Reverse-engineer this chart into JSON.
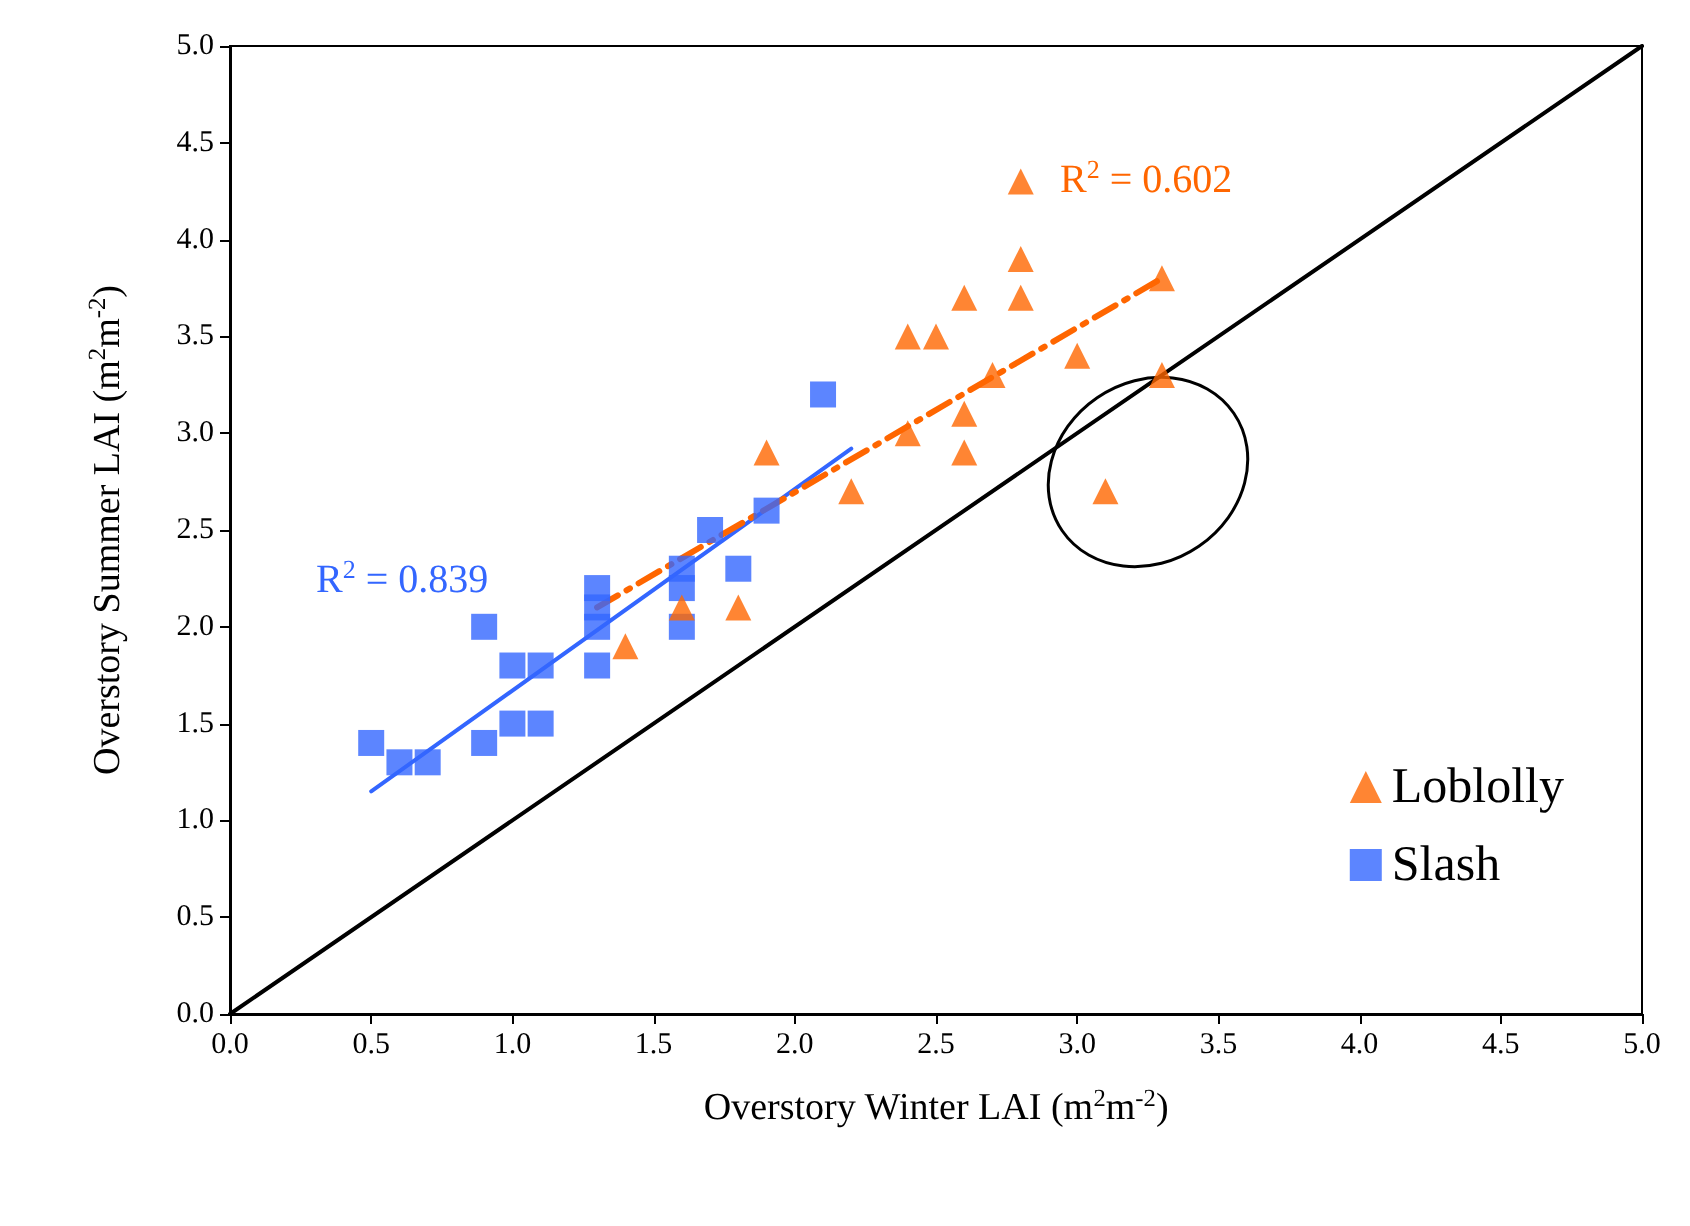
{
  "chart_data": {
    "type": "scatter",
    "xlabel": "Overstory Winter LAI (m$^{2}$m$^{-2}$)",
    "ylabel": "Overstory Summer LAI (m$^{2}$m$^{-2}$)",
    "xlim": [
      0,
      5
    ],
    "ylim": [
      0,
      5
    ],
    "xticks": [
      {
        "value": 0,
        "label": "0.0"
      },
      {
        "value": 0.5,
        "label": "0.5"
      },
      {
        "value": 1,
        "label": "1.0"
      },
      {
        "value": 1.5,
        "label": "1.5"
      },
      {
        "value": 2,
        "label": "2.0"
      },
      {
        "value": 2.5,
        "label": "2.5"
      },
      {
        "value": 3,
        "label": "3.0"
      },
      {
        "value": 3.5,
        "label": "3.5"
      },
      {
        "value": 4,
        "label": "4.0"
      },
      {
        "value": 4.5,
        "label": "4.5"
      },
      {
        "value": 5,
        "label": "5.0"
      }
    ],
    "yticks": [
      {
        "value": 0,
        "label": "0.0"
      },
      {
        "value": 0.5,
        "label": "0.5"
      },
      {
        "value": 1,
        "label": "1.0"
      },
      {
        "value": 1.5,
        "label": "1.5"
      },
      {
        "value": 2,
        "label": "2.0"
      },
      {
        "value": 2.5,
        "label": "2.5"
      },
      {
        "value": 3,
        "label": "3.0"
      },
      {
        "value": 3.5,
        "label": "3.5"
      },
      {
        "value": 4,
        "label": "4.0"
      },
      {
        "value": 4.5,
        "label": "4.5"
      },
      {
        "value": 5,
        "label": "5.0"
      }
    ],
    "grid": false,
    "legend": "bottom right",
    "series": [
      {
        "name": "Loblolly",
        "marker": "triangle",
        "color": "#ff6600",
        "x": [
          1.4,
          1.6,
          1.8,
          1.9,
          2.2,
          2.4,
          2.4,
          2.5,
          2.6,
          2.6,
          2.6,
          2.7,
          2.8,
          2.8,
          2.8,
          3.0,
          3.1,
          3.3,
          3.3
        ],
        "values": [
          1.9,
          2.1,
          2.1,
          2.9,
          2.7,
          3.5,
          3.0,
          3.5,
          3.7,
          3.1,
          2.9,
          3.3,
          4.3,
          3.9,
          3.7,
          3.4,
          2.7,
          3.8,
          3.3
        ]
      },
      {
        "name": "Slash",
        "marker": "square",
        "color": "#3366ff",
        "x": [
          0.5,
          0.6,
          0.7,
          0.9,
          0.9,
          1.0,
          1.0,
          1.1,
          1.1,
          1.3,
          1.3,
          1.3,
          1.3,
          1.6,
          1.6,
          1.6,
          1.7,
          1.8,
          1.9,
          2.1
        ],
        "values": [
          1.4,
          1.3,
          1.3,
          2.0,
          1.4,
          1.8,
          1.5,
          1.8,
          1.5,
          2.2,
          2.1,
          2.0,
          1.8,
          2.3,
          2.2,
          2.0,
          2.5,
          2.3,
          2.6,
          3.2
        ]
      },
      {
        "type": "line",
        "line_style": "solid",
        "color": "#3366ff",
        "x": [
          0.5,
          2.2
        ],
        "values": [
          1.15,
          2.92
        ]
      },
      {
        "type": "line",
        "line_style": "dashed",
        "color": "#ff6600",
        "x": [
          1.3,
          3.3
        ],
        "values": [
          2.1,
          3.8
        ]
      },
      {
        "type": "line",
        "line_style": "solid",
        "color": "#000000",
        "x": [
          0,
          5
        ],
        "values": [
          0,
          5
        ]
      }
    ],
    "annotations": [
      "R$^{2}$ = 0.839",
      "R$^{2}$ = 0.602"
    ]
  }
}
